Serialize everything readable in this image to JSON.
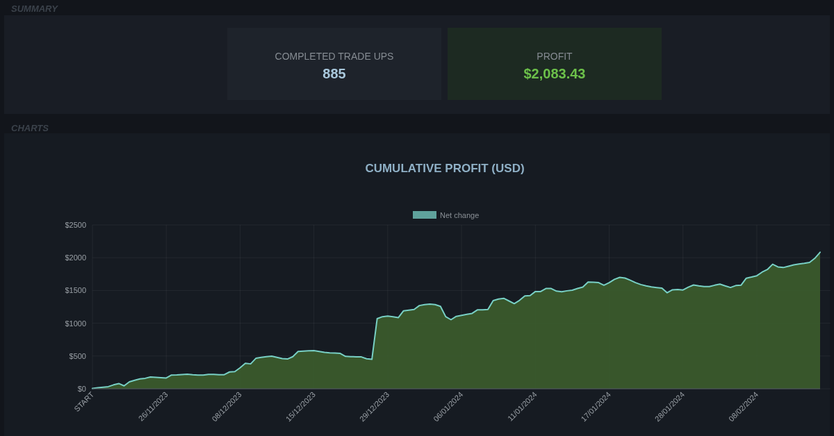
{
  "chart_data": [
    {
      "type": "other",
      "title": "SUMMARY",
      "annotations": [
        "COMPLETED TRADE UPS",
        "885",
        "PROFIT",
        "$2,083.43"
      ],
      "colors": [
        "#a9c8dc",
        "#6cc04a"
      ]
    },
    {
      "type": "area",
      "title": "CUMULATIVE PROFIT (USD)",
      "annotations": [
        "CHARTS"
      ],
      "categories": [
        "START",
        null,
        null,
        null,
        null,
        null,
        null,
        null,
        null,
        null,
        null,
        null,
        null,
        null,
        "26/11/2023",
        null,
        null,
        null,
        null,
        null,
        null,
        null,
        null,
        null,
        null,
        null,
        null,
        null,
        "08/12/2023",
        null,
        null,
        null,
        null,
        null,
        null,
        null,
        null,
        null,
        null,
        null,
        null,
        null,
        "15/12/2023",
        null,
        null,
        null,
        null,
        null,
        null,
        null,
        null,
        null,
        null,
        null,
        null,
        null,
        "29/12/2023",
        null,
        null,
        null,
        null,
        null,
        null,
        null,
        null,
        null,
        null,
        null,
        null,
        null,
        "06/01/2024",
        null,
        null,
        null,
        null,
        null,
        null,
        null,
        null,
        null,
        null,
        null,
        null,
        null,
        "11/01/2024",
        null,
        null,
        null,
        null,
        null,
        null,
        null,
        null,
        null,
        null,
        null,
        null,
        null,
        "17/01/2024",
        null,
        null,
        null,
        null,
        null,
        null,
        null,
        null,
        null,
        null,
        null,
        null,
        null,
        "28/01/2024",
        null,
        null,
        null,
        null,
        null,
        null,
        null,
        null,
        null,
        null,
        null,
        null,
        null,
        "08/02/2024",
        null,
        null,
        null,
        null,
        null,
        null,
        null,
        null,
        null,
        null,
        null,
        null
      ],
      "series": [
        {
          "name": "Net change",
          "color": "#78d0c5",
          "values": [
            5,
            15,
            25,
            33,
            60,
            80,
            45,
            106,
            130,
            150,
            160,
            180,
            175,
            170,
            165,
            210,
            213,
            218,
            222,
            215,
            210,
            210,
            220,
            220,
            215,
            215,
            257,
            262,
            320,
            389,
            380,
            465,
            480,
            490,
            498,
            480,
            460,
            455,
            490,
            570,
            575,
            580,
            583,
            570,
            555,
            548,
            545,
            540,
            495,
            490,
            488,
            486,
            458,
            450,
            1070,
            1100,
            1110,
            1100,
            1085,
            1190,
            1200,
            1210,
            1270,
            1285,
            1292,
            1285,
            1258,
            1100,
            1054,
            1105,
            1120,
            1135,
            1150,
            1204,
            1204,
            1210,
            1345,
            1370,
            1380,
            1340,
            1300,
            1350,
            1418,
            1422,
            1484,
            1484,
            1530,
            1530,
            1490,
            1480,
            1495,
            1505,
            1530,
            1552,
            1629,
            1625,
            1620,
            1580,
            1620,
            1670,
            1700,
            1690,
            1656,
            1620,
            1590,
            1570,
            1555,
            1545,
            1535,
            1465,
            1510,
            1515,
            1507,
            1550,
            1584,
            1570,
            1560,
            1560,
            1580,
            1597,
            1570,
            1545,
            1575,
            1580,
            1688,
            1705,
            1725,
            1780,
            1820,
            1900,
            1860,
            1850,
            1870,
            1890,
            1905,
            1915,
            1928,
            1991,
            2083
          ]
        }
      ],
      "ylim": [
        0,
        2500
      ],
      "yticks": [
        {
          "value": 0,
          "label": "$0"
        },
        {
          "value": 500,
          "label": "$500"
        },
        {
          "value": 1000,
          "label": "$1000"
        },
        {
          "value": 1500,
          "label": "$1500"
        },
        {
          "value": 2000,
          "label": "$2000"
        },
        {
          "value": 2500,
          "label": "$2500"
        }
      ],
      "grid": true,
      "legend": "top"
    }
  ]
}
